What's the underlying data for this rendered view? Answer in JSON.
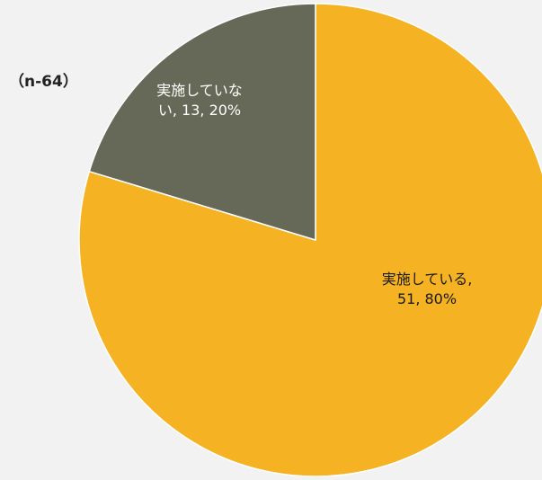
{
  "chart_data": {
    "type": "pie",
    "sample_size_label": "（n-64）",
    "slices": [
      {
        "name": "実施している",
        "value": 51,
        "percent": 80,
        "color": "#f5b324",
        "label_line1": "実施している,",
        "label_line2": "51, 80%",
        "label_color": "#1a1a1a"
      },
      {
        "name": "実施していない",
        "value": 13,
        "percent": 20,
        "color": "#666957",
        "label_line1": "実施していな",
        "label_line2": "い, 13, 20%",
        "label_color": "#ffffff"
      }
    ]
  }
}
